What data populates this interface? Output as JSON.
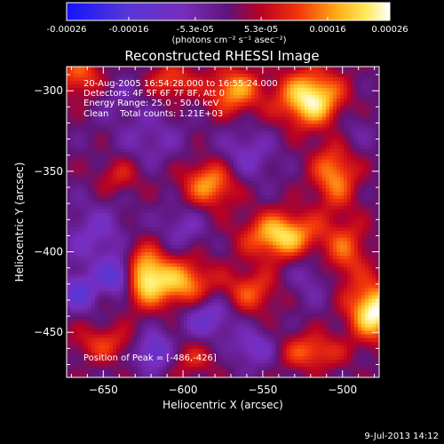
{
  "chart_data": {
    "type": "heatmap",
    "title": "Reconstructed RHESSI Image",
    "xlabel": "Heliocentric X (arcsec)",
    "ylabel": "Heliocentric Y (arcsec)",
    "xlim": [
      -673,
      -477
    ],
    "ylim": [
      -478,
      -285
    ],
    "x_ticks": [
      -650,
      -600,
      -550,
      -500
    ],
    "y_ticks": [
      -300,
      -350,
      -400,
      -450
    ],
    "colorbar": {
      "range": [
        -0.00026,
        0.00026
      ],
      "tick_values": [
        -0.00026,
        -0.00016,
        -5.3e-05,
        5.3e-05,
        0.00016,
        0.00026
      ],
      "tick_labels": [
        "-0.00026",
        "-0.00016",
        "-5.3e-05",
        "5.3e-05",
        "0.00016",
        "0.00026"
      ],
      "unit_label": "(photons cm⁻² s⁻¹ asec⁻²)"
    },
    "annotations": [
      "20-Aug-2005 16:54:28.000 to 16:55:24.000",
      "Detectors: 4F 5F 6F 7F 8F, Att 0",
      "Energy Range: 25.0 - 50.0 keV",
      "Clean    Total counts: 1.21E+03"
    ],
    "peak_label": "Position of Peak = [-486,-426]",
    "peak": {
      "x": -486,
      "y": -426
    },
    "colormap": "blue-purple-red-orange-yellow-white",
    "sources": [
      {
        "x": -480,
        "y": -437,
        "value": 0.00026,
        "sx": 11,
        "sy": 12
      },
      {
        "x": -520,
        "y": -305,
        "value": 0.00025,
        "sx": 14,
        "sy": 12
      },
      {
        "x": -538,
        "y": -390,
        "value": 0.00022,
        "sx": 16,
        "sy": 10
      },
      {
        "x": -600,
        "y": -420,
        "value": 0.00018,
        "sx": 13,
        "sy": 11
      },
      {
        "x": -625,
        "y": -415,
        "value": 0.00024,
        "sx": 10,
        "sy": 12
      },
      {
        "x": -568,
        "y": -300,
        "value": 0.00017,
        "sx": 12,
        "sy": 10
      },
      {
        "x": -583,
        "y": -358,
        "value": 0.00017,
        "sx": 12,
        "sy": 10
      },
      {
        "x": -505,
        "y": -352,
        "value": 0.00016,
        "sx": 10,
        "sy": 14
      },
      {
        "x": -607,
        "y": -294,
        "value": 0.00012,
        "sx": 10,
        "sy": 8
      },
      {
        "x": -520,
        "y": -462,
        "value": 0.00013,
        "sx": 14,
        "sy": 8
      },
      {
        "x": -558,
        "y": -425,
        "value": 0.00012,
        "sx": 12,
        "sy": 10
      },
      {
        "x": -665,
        "y": -290,
        "value": 0.00013,
        "sx": 10,
        "sy": 10
      },
      {
        "x": -498,
        "y": -400,
        "value": 0.00012,
        "sx": 10,
        "sy": 14
      },
      {
        "x": -640,
        "y": -353,
        "value": 8e-05,
        "sx": 10,
        "sy": 8
      },
      {
        "x": -650,
        "y": -457,
        "value": 0.0001,
        "sx": 14,
        "sy": 8
      },
      {
        "x": -595,
        "y": -466,
        "value": 8e-05,
        "sx": 12,
        "sy": 8
      },
      {
        "x": -655,
        "y": -390,
        "value": -8e-05,
        "sx": 14,
        "sy": 14
      },
      {
        "x": -665,
        "y": -425,
        "value": -0.00014,
        "sx": 8,
        "sy": 8
      },
      {
        "x": -640,
        "y": -415,
        "value": -0.0002,
        "sx": 8,
        "sy": 8
      },
      {
        "x": -618,
        "y": -462,
        "value": -0.00016,
        "sx": 8,
        "sy": 8
      },
      {
        "x": -585,
        "y": -440,
        "value": -0.00012,
        "sx": 12,
        "sy": 10
      },
      {
        "x": -555,
        "y": -460,
        "value": -0.0001,
        "sx": 10,
        "sy": 8
      },
      {
        "x": -620,
        "y": -330,
        "value": -6e-05,
        "sx": 14,
        "sy": 12
      },
      {
        "x": -560,
        "y": -340,
        "value": -8e-05,
        "sx": 12,
        "sy": 12
      },
      {
        "x": -640,
        "y": -305,
        "value": -4e-05,
        "sx": 10,
        "sy": 10
      },
      {
        "x": -495,
        "y": -325,
        "value": -5e-05,
        "sx": 10,
        "sy": 10
      },
      {
        "x": -520,
        "y": -415,
        "value": -6e-05,
        "sx": 10,
        "sy": 12
      },
      {
        "x": -600,
        "y": -385,
        "value": -7e-05,
        "sx": 10,
        "sy": 10
      }
    ],
    "grid": false
  },
  "footer": {
    "timestamp": "9-Jul-2013 14:12"
  }
}
